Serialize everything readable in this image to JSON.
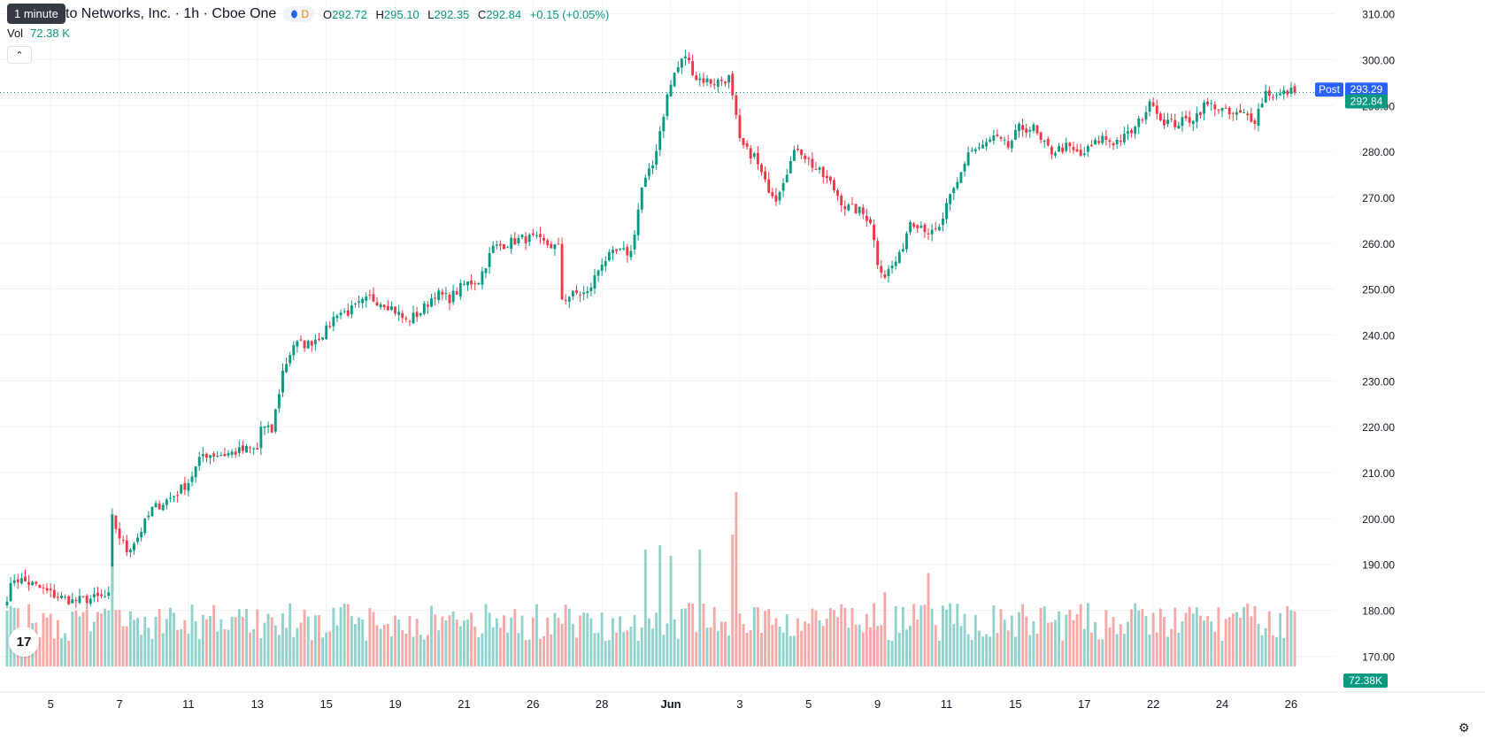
{
  "header": {
    "symbol_title": "to Networks, Inc. · 1h · Cboe One",
    "tooltip": "1 minute",
    "d_marker": "D",
    "ohlc": {
      "o_label": "O",
      "o": "292.72",
      "h_label": "H",
      "h": "295.10",
      "l_label": "L",
      "l": "292.35",
      "c_label": "C",
      "c": "292.84",
      "change": "+0.15 (+0.05%)"
    },
    "vol_label": "Vol",
    "vol_value": "72.38 K"
  },
  "icons": {
    "collapse": "chevron-up-icon",
    "logo": "tradingview-logo-icon",
    "settings": "gear-icon",
    "session": "moon-icon"
  },
  "colors": {
    "up": "#089981",
    "down": "#f23645",
    "vol_up": "#92d2cc",
    "vol_down": "#f7a9a7",
    "post": "#2962ff",
    "grid": "#f0f3fa"
  },
  "chart_data": {
    "type": "candlestick",
    "price_axis": {
      "ticks": [
        "310.00",
        "300.00",
        "290.00",
        "280.00",
        "270.00",
        "260.00",
        "250.00",
        "240.00",
        "230.00",
        "220.00",
        "210.00",
        "200.00",
        "190.00",
        "180.00",
        "170.00"
      ],
      "ylim": [
        167,
        313
      ]
    },
    "time_axis": {
      "ticks": [
        {
          "label": "5",
          "bar": 12
        },
        {
          "label": "7",
          "bar": 31
        },
        {
          "label": "11",
          "bar": 50
        },
        {
          "label": "13",
          "bar": 69
        },
        {
          "label": "15",
          "bar": 88
        },
        {
          "label": "19",
          "bar": 107
        },
        {
          "label": "21",
          "bar": 126
        },
        {
          "label": "26",
          "bar": 145
        },
        {
          "label": "28",
          "bar": 164
        },
        {
          "label": "Jun",
          "bar": 183
        },
        {
          "label": "3",
          "bar": 202
        },
        {
          "label": "5",
          "bar": 221
        },
        {
          "label": "9",
          "bar": 240
        },
        {
          "label": "11",
          "bar": 259
        },
        {
          "label": "15",
          "bar": 278
        },
        {
          "label": "17",
          "bar": 297
        },
        {
          "label": "22",
          "bar": 316
        },
        {
          "label": "24",
          "bar": 335
        },
        {
          "label": "26",
          "bar": 354
        }
      ]
    },
    "labels": {
      "post_tag": "Post",
      "post_price": "293.29",
      "last_price": "292.84",
      "volume_tag": "72.38K"
    },
    "current_price": 292.84,
    "post_price": 293.29,
    "anchors": [
      [
        0,
        183
      ],
      [
        2,
        187
      ],
      [
        6,
        186
      ],
      [
        11,
        184
      ],
      [
        14,
        183
      ],
      [
        18,
        182
      ],
      [
        28,
        183
      ],
      [
        29,
        200
      ],
      [
        31,
        196
      ],
      [
        33,
        193
      ],
      [
        36,
        196
      ],
      [
        40,
        202
      ],
      [
        46,
        205
      ],
      [
        50,
        208
      ],
      [
        54,
        214
      ],
      [
        60,
        214
      ],
      [
        66,
        215
      ],
      [
        69,
        215
      ],
      [
        70,
        220
      ],
      [
        73,
        219
      ],
      [
        76,
        232
      ],
      [
        79,
        238
      ],
      [
        83,
        238
      ],
      [
        88,
        241
      ],
      [
        91,
        245
      ],
      [
        94,
        245
      ],
      [
        98,
        247
      ],
      [
        100,
        248
      ],
      [
        104,
        247
      ],
      [
        106,
        246
      ],
      [
        110,
        243
      ],
      [
        114,
        245
      ],
      [
        118,
        249
      ],
      [
        122,
        248
      ],
      [
        126,
        251
      ],
      [
        130,
        252
      ],
      [
        134,
        259
      ],
      [
        138,
        260
      ],
      [
        142,
        261
      ],
      [
        145,
        261
      ],
      [
        148,
        260
      ],
      [
        152,
        259
      ],
      [
        153,
        248
      ],
      [
        157,
        249
      ],
      [
        160,
        249
      ],
      [
        164,
        256
      ],
      [
        168,
        258
      ],
      [
        172,
        258
      ],
      [
        175,
        272
      ],
      [
        178,
        277
      ],
      [
        182,
        292
      ],
      [
        184,
        297
      ],
      [
        187,
        301
      ],
      [
        190,
        296
      ],
      [
        195,
        295
      ],
      [
        199,
        296
      ],
      [
        201,
        287
      ],
      [
        202,
        282
      ],
      [
        204,
        280
      ],
      [
        206,
        279
      ],
      [
        209,
        273
      ],
      [
        212,
        270
      ],
      [
        215,
        276
      ],
      [
        218,
        281
      ],
      [
        222,
        277
      ],
      [
        227,
        273
      ],
      [
        231,
        268
      ],
      [
        235,
        267
      ],
      [
        238,
        265
      ],
      [
        240,
        256
      ],
      [
        242,
        253
      ],
      [
        246,
        257
      ],
      [
        249,
        265
      ],
      [
        252,
        264
      ],
      [
        255,
        262
      ],
      [
        257,
        263
      ],
      [
        259,
        268
      ],
      [
        262,
        273
      ],
      [
        265,
        280
      ],
      [
        269,
        281
      ],
      [
        272,
        283
      ],
      [
        276,
        281
      ],
      [
        279,
        285
      ],
      [
        283,
        285
      ],
      [
        285,
        282
      ],
      [
        288,
        280
      ],
      [
        292,
        281
      ],
      [
        296,
        279
      ],
      [
        299,
        281
      ],
      [
        302,
        283
      ],
      [
        305,
        282
      ],
      [
        308,
        283
      ],
      [
        311,
        285
      ],
      [
        314,
        289
      ],
      [
        316,
        291
      ],
      [
        318,
        287
      ],
      [
        322,
        286
      ],
      [
        326,
        287
      ],
      [
        328,
        288
      ],
      [
        330,
        290
      ],
      [
        333,
        290
      ],
      [
        337,
        288
      ],
      [
        341,
        288
      ],
      [
        344,
        287
      ],
      [
        347,
        293
      ],
      [
        350,
        292
      ],
      [
        353,
        293
      ],
      [
        355,
        293
      ]
    ],
    "bar_count": 356,
    "gaps": [
      29,
      153,
      201
    ],
    "volume_spikes": [
      [
        29,
        0.47
      ],
      [
        176,
        0.55
      ],
      [
        180,
        0.57
      ],
      [
        183,
        0.52
      ],
      [
        191,
        0.55
      ],
      [
        200,
        0.62
      ],
      [
        201,
        0.82
      ],
      [
        242,
        0.35
      ],
      [
        254,
        0.44
      ]
    ],
    "volume_max_label": "72.38K"
  }
}
